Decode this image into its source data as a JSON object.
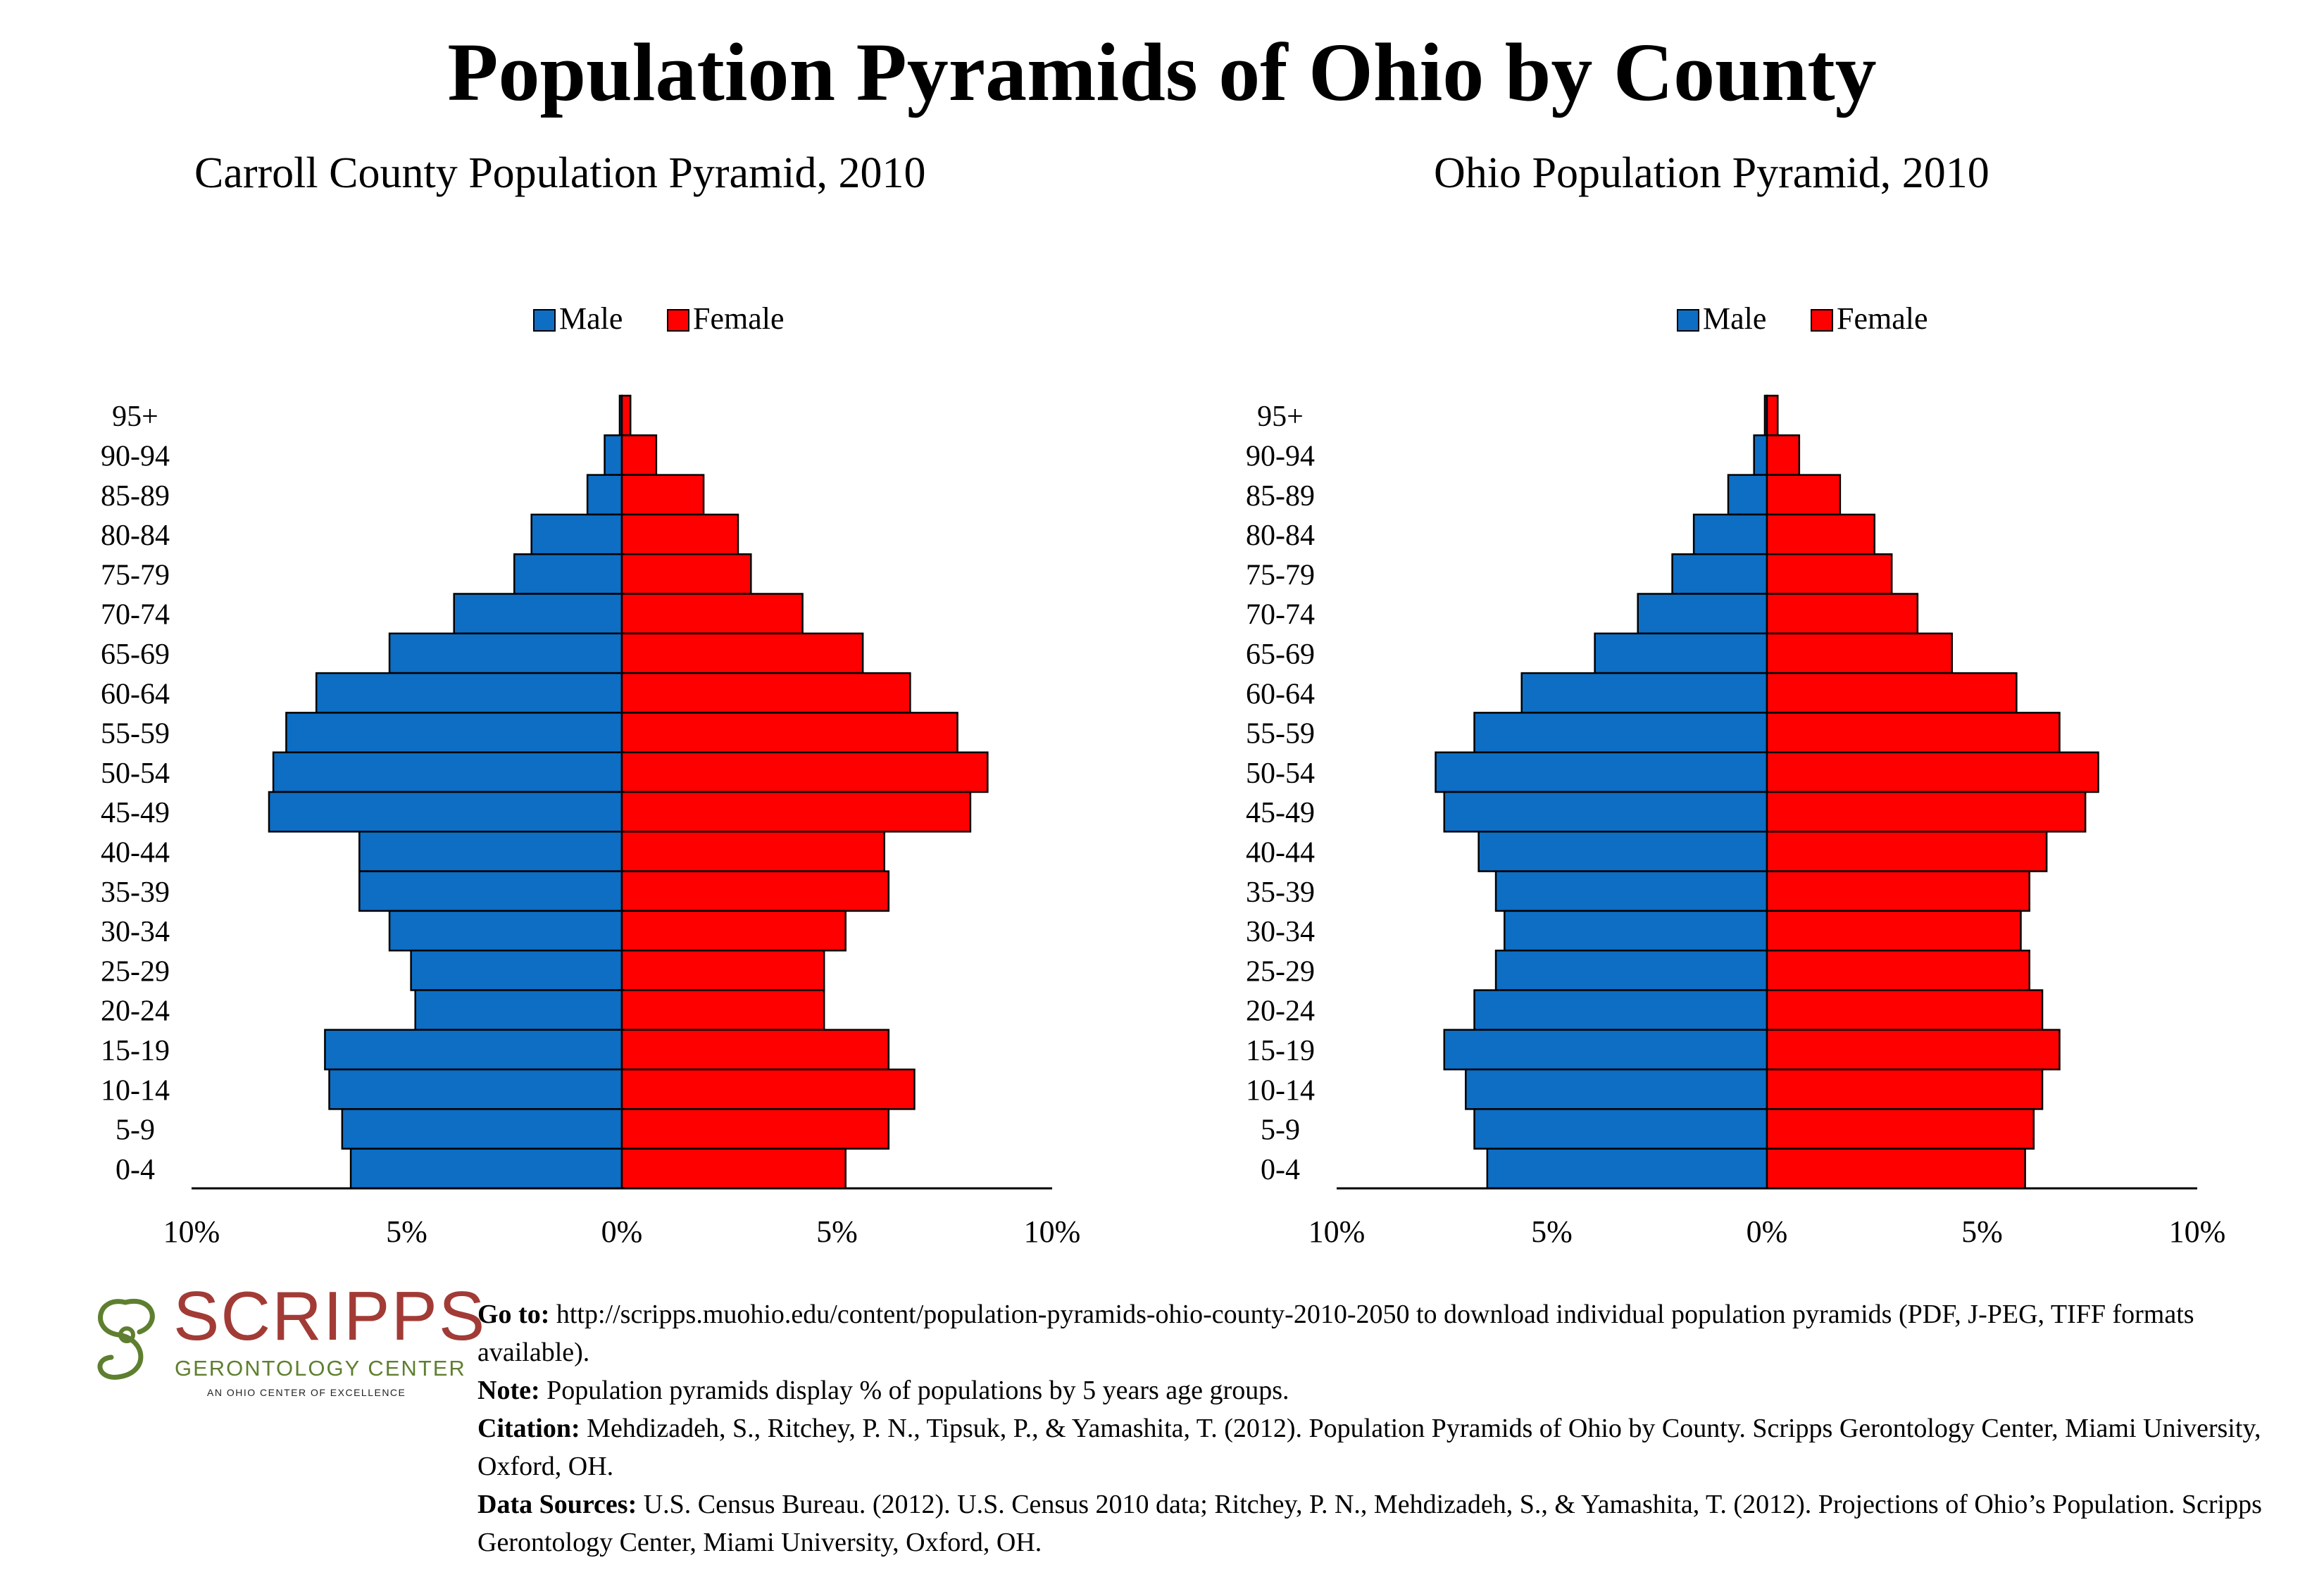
{
  "title": "Population Pyramids of Ohio by County",
  "colors": {
    "male": "#0d6ec4",
    "female": "#ff0000",
    "axis": "#000000"
  },
  "chart_data": [
    {
      "type": "bar",
      "title": "Carroll County Population Pyramid, 2010",
      "categories": [
        "95+",
        "90-94",
        "85-89",
        "80-84",
        "75-79",
        "70-74",
        "65-69",
        "60-64",
        "55-59",
        "50-54",
        "45-49",
        "40-44",
        "35-39",
        "30-34",
        "25-29",
        "20-24",
        "15-19",
        "10-14",
        "5-9",
        "0-4"
      ],
      "series": [
        {
          "name": "Male",
          "values": [
            0.05,
            0.4,
            0.8,
            2.1,
            2.5,
            3.9,
            5.4,
            7.1,
            7.8,
            8.1,
            8.2,
            6.1,
            6.1,
            5.4,
            4.9,
            4.8,
            6.9,
            6.8,
            6.5,
            6.3
          ]
        },
        {
          "name": "Female",
          "values": [
            0.2,
            0.8,
            1.9,
            2.7,
            3.0,
            4.2,
            5.6,
            6.7,
            7.8,
            8.5,
            8.1,
            6.1,
            6.2,
            5.2,
            4.7,
            4.7,
            6.2,
            6.8,
            6.2,
            5.2
          ]
        }
      ],
      "xlim": [
        -10,
        10
      ],
      "tick_labels": [
        "10%",
        "5%",
        "0%",
        "5%",
        "10%"
      ],
      "legend": "top-center",
      "grid": false
    },
    {
      "type": "bar",
      "title": "Ohio Population Pyramid, 2010",
      "categories": [
        "95+",
        "90-94",
        "85-89",
        "80-84",
        "75-79",
        "70-74",
        "65-69",
        "60-64",
        "55-59",
        "50-54",
        "45-49",
        "40-44",
        "35-39",
        "30-34",
        "25-29",
        "20-24",
        "15-19",
        "10-14",
        "5-9",
        "0-4"
      ],
      "series": [
        {
          "name": "Male",
          "values": [
            0.05,
            0.3,
            0.9,
            1.7,
            2.2,
            3.0,
            4.0,
            5.7,
            6.8,
            7.7,
            7.5,
            6.7,
            6.3,
            6.1,
            6.3,
            6.8,
            7.5,
            7.0,
            6.8,
            6.5
          ]
        },
        {
          "name": "Female",
          "values": [
            0.25,
            0.75,
            1.7,
            2.5,
            2.9,
            3.5,
            4.3,
            5.8,
            6.8,
            7.7,
            7.4,
            6.5,
            6.1,
            5.9,
            6.1,
            6.4,
            6.8,
            6.4,
            6.2,
            6.0
          ]
        }
      ],
      "xlim": [
        -10,
        10
      ],
      "tick_labels": [
        "10%",
        "5%",
        "0%",
        "5%",
        "10%"
      ],
      "legend": "top-center",
      "grid": false
    }
  ],
  "logo": {
    "name": "SCRIPPS",
    "subtitle": "GERONTOLOGY CENTER",
    "tagline": "AN OHIO CENTER OF EXCELLENCE"
  },
  "notes": {
    "goto_label": "Go to:",
    "goto_text": "http://scripps.muohio.edu/content/population-pyramids-ohio-county-2010-2050 to download individual population pyramids (PDF, J-PEG, TIFF formats available).",
    "note_label": "Note:",
    "note_text": "Population pyramids display % of populations by 5 years age groups.",
    "citation_label": "Citation:",
    "citation_text": "Mehdizadeh, S., Ritchey, P. N., Tipsuk, P., & Yamashita, T. (2012). Population Pyramids of Ohio by County. Scripps Gerontology Center, Miami University, Oxford, OH.",
    "sources_label": "Data Sources:",
    "sources_text": "U.S. Census Bureau. (2012). U.S. Census 2010 data; Ritchey, P. N., Mehdizadeh, S., & Yamashita, T. (2012). Projections of Ohio’s Population. Scripps Gerontology Center, Miami University, Oxford, OH."
  }
}
